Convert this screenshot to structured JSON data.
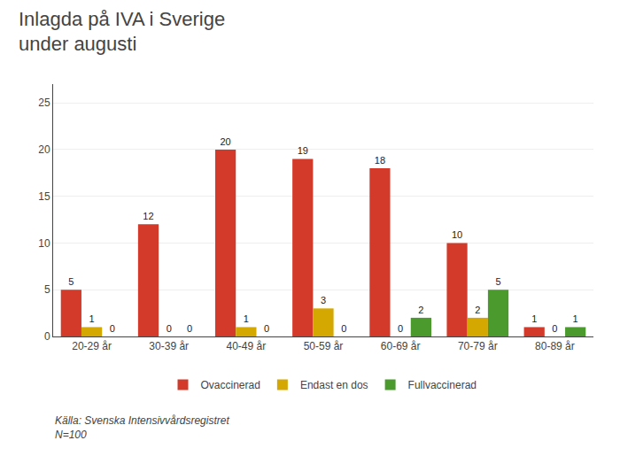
{
  "chart_data": {
    "type": "bar",
    "title": "Inlagda på IVA i Sverige\nunder augusti",
    "categories": [
      "20-29 år",
      "30-39 år",
      "40-49 år",
      "50-59 år",
      "60-69 år",
      "70-79 år",
      "80-89 år"
    ],
    "series": [
      {
        "name": "Ovaccinerad",
        "color": "#d43a2a",
        "values": [
          5,
          12,
          20,
          19,
          18,
          10,
          1
        ]
      },
      {
        "name": "Endast en dos",
        "color": "#d4a800",
        "values": [
          1,
          0,
          1,
          3,
          0,
          2,
          0
        ]
      },
      {
        "name": "Fullvaccinerad",
        "color": "#4a9a2e",
        "values": [
          0,
          0,
          0,
          0,
          2,
          5,
          1
        ]
      }
    ],
    "ylim": [
      0,
      27
    ],
    "yticks": [
      0,
      5,
      10,
      15,
      20,
      25
    ],
    "grid": true,
    "data_labels": true,
    "legend": "bottom",
    "annotations": [
      "Källa: Svenska Intensivvårdsregistret\nN=100"
    ]
  }
}
